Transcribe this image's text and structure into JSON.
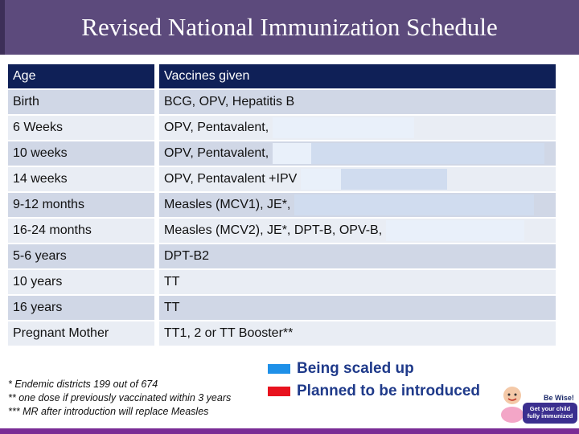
{
  "title": "Revised National Immunization Schedule",
  "table": {
    "headers": [
      "Age",
      "Vaccines given"
    ],
    "rows": [
      {
        "age": "Birth",
        "vaccines": "BCG, OPV, Hepatitis B"
      },
      {
        "age": "6 Weeks",
        "vaccines": "OPV, Pentavalent,"
      },
      {
        "age": "10 weeks",
        "vaccines": "OPV, Pentavalent,"
      },
      {
        "age": "14 weeks",
        "vaccines": "OPV, Pentavalent +IPV"
      },
      {
        "age": "9-12 months",
        "vaccines": "Measles (MCV1), JE*,"
      },
      {
        "age": "16-24 months",
        "vaccines": "Measles (MCV2), JE*, DPT-B, OPV-B,"
      },
      {
        "age": "5-6 years",
        "vaccines": "DPT-B2"
      },
      {
        "age": "10 years",
        "vaccines": "TT"
      },
      {
        "age": "16 years",
        "vaccines": "TT"
      },
      {
        "age": "Pregnant Mother",
        "vaccines": "TT1, 2 or TT Booster**"
      }
    ]
  },
  "footnotes": [
    "* Endemic districts 199 out of 674",
    "** one dose if previously vaccinated within 3 years",
    "*** MR after introduction will replace Measles"
  ],
  "legend": [
    {
      "label": "Being scaled up",
      "color": "#1e90e8"
    },
    {
      "label": "Planned to be introduced",
      "color": "#e8121e"
    }
  ],
  "badge": {
    "line1": "Be Wise!",
    "line2": "Get your child",
    "line3": "fully immunized"
  },
  "colors": {
    "title_bar": "#5c4a7c",
    "header_row": "#0f2057",
    "row_dark": "#d0d7e6",
    "row_light": "#e9edf4",
    "bottom_bar": "#7a2c95"
  }
}
